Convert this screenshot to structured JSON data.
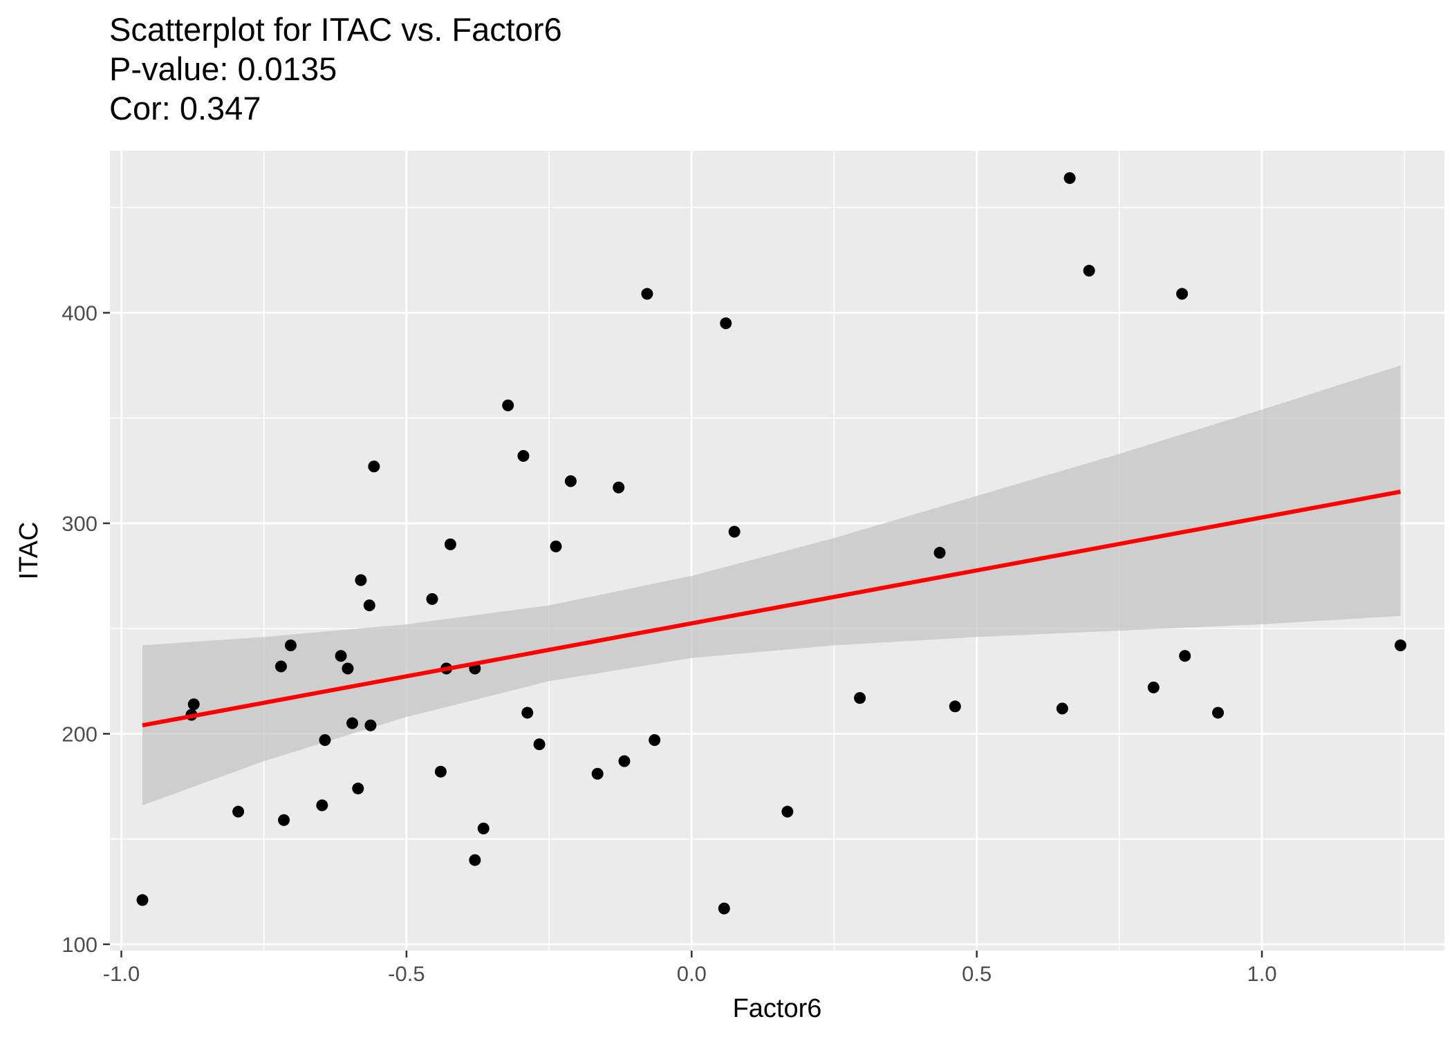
{
  "chart_data": {
    "type": "scatter",
    "title": "Scatterplot for ITAC vs. Factor6",
    "subtitle_lines": [
      "P-value: 0.0135",
      "Cor: 0.347"
    ],
    "xlabel": "Factor6",
    "ylabel": "ITAC",
    "xlim": [
      -1.02,
      1.32
    ],
    "ylim": [
      97,
      477
    ],
    "x_ticks": [
      -1.0,
      -0.5,
      0.0,
      0.5,
      1.0
    ],
    "x_tick_labels": [
      "-1.0",
      "-0.5",
      "0.0",
      "0.5",
      "1.0"
    ],
    "y_ticks": [
      100,
      200,
      300,
      400
    ],
    "y_tick_labels": [
      "100",
      "200",
      "300",
      "400"
    ],
    "grid": true,
    "colors": {
      "panel": "#ebebeb",
      "grid": "#ffffff",
      "points": "#000000",
      "fit_line": "#ff0000",
      "ribbon": "#bfbfbf"
    },
    "points": [
      {
        "x": -0.963,
        "y": 121
      },
      {
        "x": -0.877,
        "y": 209
      },
      {
        "x": -0.873,
        "y": 214
      },
      {
        "x": -0.795,
        "y": 163
      },
      {
        "x": -0.72,
        "y": 232
      },
      {
        "x": -0.715,
        "y": 159
      },
      {
        "x": -0.703,
        "y": 242
      },
      {
        "x": -0.648,
        "y": 166
      },
      {
        "x": -0.643,
        "y": 197
      },
      {
        "x": -0.615,
        "y": 237
      },
      {
        "x": -0.603,
        "y": 231
      },
      {
        "x": -0.595,
        "y": 205
      },
      {
        "x": -0.585,
        "y": 174
      },
      {
        "x": -0.58,
        "y": 273
      },
      {
        "x": -0.565,
        "y": 261
      },
      {
        "x": -0.563,
        "y": 204
      },
      {
        "x": -0.557,
        "y": 327
      },
      {
        "x": -0.455,
        "y": 264
      },
      {
        "x": -0.44,
        "y": 182
      },
      {
        "x": -0.43,
        "y": 231
      },
      {
        "x": -0.423,
        "y": 290
      },
      {
        "x": -0.38,
        "y": 231
      },
      {
        "x": -0.38,
        "y": 140
      },
      {
        "x": -0.365,
        "y": 155
      },
      {
        "x": -0.322,
        "y": 356
      },
      {
        "x": -0.295,
        "y": 332
      },
      {
        "x": -0.288,
        "y": 210
      },
      {
        "x": -0.267,
        "y": 195
      },
      {
        "x": -0.238,
        "y": 289
      },
      {
        "x": -0.212,
        "y": 320
      },
      {
        "x": -0.165,
        "y": 181
      },
      {
        "x": -0.128,
        "y": 317
      },
      {
        "x": -0.118,
        "y": 187
      },
      {
        "x": -0.078,
        "y": 409
      },
      {
        "x": -0.065,
        "y": 197
      },
      {
        "x": 0.057,
        "y": 117
      },
      {
        "x": 0.06,
        "y": 395
      },
      {
        "x": 0.075,
        "y": 296
      },
      {
        "x": 0.168,
        "y": 163
      },
      {
        "x": 0.295,
        "y": 217
      },
      {
        "x": 0.435,
        "y": 286
      },
      {
        "x": 0.462,
        "y": 213
      },
      {
        "x": 0.65,
        "y": 212
      },
      {
        "x": 0.663,
        "y": 464
      },
      {
        "x": 0.697,
        "y": 420
      },
      {
        "x": 0.81,
        "y": 222
      },
      {
        "x": 0.86,
        "y": 409
      },
      {
        "x": 0.865,
        "y": 237
      },
      {
        "x": 0.923,
        "y": 210
      },
      {
        "x": 1.243,
        "y": 242
      }
    ],
    "fit_line": {
      "x": [
        -0.963,
        1.243
      ],
      "y": [
        204,
        315
      ]
    },
    "confidence_band": {
      "x": [
        -0.963,
        -0.75,
        -0.5,
        -0.25,
        0.0,
        0.25,
        0.5,
        0.75,
        1.0,
        1.243
      ],
      "lower": [
        166,
        187,
        208,
        225,
        236,
        242,
        246,
        249,
        252,
        256
      ],
      "upper": [
        242,
        246,
        252,
        261,
        275,
        293,
        313,
        333,
        354,
        375
      ]
    }
  }
}
